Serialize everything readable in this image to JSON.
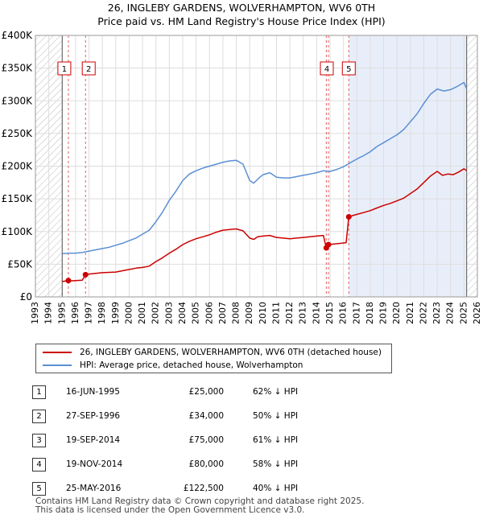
{
  "title_line1": "26, INGLEBY GARDENS, WOLVERHAMPTON, WV6 0TH",
  "title_line2": "Price paid vs. HM Land Registry's House Price Index (HPI)",
  "chart_data": {
    "type": "line",
    "title": "26, INGLEBY GARDENS, WOLVERHAMPTON, WV6 0TH — Price paid vs. HM Land Registry's House Price Index (HPI)",
    "xlim": [
      1993,
      2026
    ],
    "ylim": [
      0,
      400000
    ],
    "x_ticks": [
      "1993",
      "1994",
      "1995",
      "1996",
      "1997",
      "1998",
      "1999",
      "2000",
      "2001",
      "2002",
      "2003",
      "2004",
      "2005",
      "2006",
      "2007",
      "2008",
      "2009",
      "2010",
      "2011",
      "2012",
      "2013",
      "2014",
      "2015",
      "2016",
      "2017",
      "2018",
      "2019",
      "2020",
      "2021",
      "2022",
      "2023",
      "2024",
      "2025",
      "2026"
    ],
    "y_ticks": [
      {
        "value": 0,
        "label": "£0"
      },
      {
        "value": 50000,
        "label": "£50K"
      },
      {
        "value": 100000,
        "label": "£100K"
      },
      {
        "value": 150000,
        "label": "£150K"
      },
      {
        "value": 200000,
        "label": "£200K"
      },
      {
        "value": 250000,
        "label": "£250K"
      },
      {
        "value": 300000,
        "label": "£300K"
      },
      {
        "value": 350000,
        "label": "£350K"
      },
      {
        "value": 400000,
        "label": "£400K"
      }
    ],
    "data_range": [
      1995.0,
      2025.2
    ],
    "series": [
      {
        "name": "26, INGLEBY GARDENS, WOLVERHAMPTON, WV6 0TH (detached house)",
        "color": "#cc0000",
        "points": [
          [
            1995.0,
            23500
          ],
          [
            1995.46,
            25000
          ],
          [
            1995.6,
            24500
          ],
          [
            1996.0,
            25000
          ],
          [
            1996.5,
            25500
          ],
          [
            1996.74,
            34000
          ],
          [
            1997.0,
            35000
          ],
          [
            1997.5,
            36000
          ],
          [
            1998.0,
            37000
          ],
          [
            1998.5,
            37500
          ],
          [
            1999.0,
            38000
          ],
          [
            1999.5,
            40000
          ],
          [
            2000.0,
            42000
          ],
          [
            2000.5,
            44000
          ],
          [
            2001.0,
            45000
          ],
          [
            2001.5,
            47000
          ],
          [
            2002.0,
            54000
          ],
          [
            2002.5,
            60000
          ],
          [
            2003.0,
            67000
          ],
          [
            2003.5,
            73000
          ],
          [
            2004.0,
            80000
          ],
          [
            2004.5,
            85000
          ],
          [
            2005.0,
            89000
          ],
          [
            2005.5,
            92000
          ],
          [
            2006.0,
            95000
          ],
          [
            2006.5,
            99000
          ],
          [
            2007.0,
            102000
          ],
          [
            2007.5,
            103000
          ],
          [
            2008.0,
            104000
          ],
          [
            2008.5,
            101000
          ],
          [
            2009.0,
            90000
          ],
          [
            2009.3,
            88000
          ],
          [
            2009.6,
            92000
          ],
          [
            2010.0,
            93000
          ],
          [
            2010.5,
            94000
          ],
          [
            2011.0,
            91000
          ],
          [
            2011.5,
            90000
          ],
          [
            2012.0,
            89000
          ],
          [
            2012.5,
            90000
          ],
          [
            2013.0,
            91000
          ],
          [
            2013.5,
            92000
          ],
          [
            2014.0,
            93000
          ],
          [
            2014.5,
            94000
          ],
          [
            2014.72,
            75000
          ],
          [
            2014.88,
            80000
          ],
          [
            2015.3,
            81000
          ],
          [
            2015.8,
            82000
          ],
          [
            2016.2,
            83000
          ],
          [
            2016.4,
            122500
          ],
          [
            2016.8,
            125000
          ],
          [
            2017.5,
            129000
          ],
          [
            2018.0,
            132000
          ],
          [
            2018.5,
            136000
          ],
          [
            2019.0,
            140000
          ],
          [
            2019.5,
            143000
          ],
          [
            2020.0,
            147000
          ],
          [
            2020.5,
            151000
          ],
          [
            2021.0,
            158000
          ],
          [
            2021.5,
            165000
          ],
          [
            2022.0,
            175000
          ],
          [
            2022.5,
            185000
          ],
          [
            2023.0,
            192000
          ],
          [
            2023.4,
            186000
          ],
          [
            2023.8,
            188000
          ],
          [
            2024.2,
            187000
          ],
          [
            2024.6,
            191000
          ],
          [
            2025.0,
            196000
          ],
          [
            2025.2,
            193000
          ]
        ]
      },
      {
        "name": "HPI: Average price, detached house, Wolverhampton",
        "color": "#5b8fd4",
        "points": [
          [
            1995.0,
            66000
          ],
          [
            1995.5,
            67000
          ],
          [
            1996.0,
            67000
          ],
          [
            1996.5,
            68000
          ],
          [
            1997.0,
            70000
          ],
          [
            1997.5,
            72000
          ],
          [
            1998.0,
            74000
          ],
          [
            1998.5,
            76000
          ],
          [
            1999.0,
            79000
          ],
          [
            1999.5,
            82000
          ],
          [
            2000.0,
            86000
          ],
          [
            2000.5,
            90000
          ],
          [
            2001.0,
            96000
          ],
          [
            2001.5,
            102000
          ],
          [
            2002.0,
            115000
          ],
          [
            2002.5,
            130000
          ],
          [
            2003.0,
            148000
          ],
          [
            2003.5,
            162000
          ],
          [
            2004.0,
            178000
          ],
          [
            2004.5,
            188000
          ],
          [
            2005.0,
            193000
          ],
          [
            2005.5,
            197000
          ],
          [
            2006.0,
            200000
          ],
          [
            2006.5,
            203000
          ],
          [
            2007.0,
            206000
          ],
          [
            2007.5,
            208000
          ],
          [
            2008.0,
            209000
          ],
          [
            2008.5,
            203000
          ],
          [
            2009.0,
            178000
          ],
          [
            2009.3,
            174000
          ],
          [
            2009.7,
            182000
          ],
          [
            2010.0,
            187000
          ],
          [
            2010.5,
            190000
          ],
          [
            2011.0,
            183000
          ],
          [
            2011.5,
            182000
          ],
          [
            2012.0,
            182000
          ],
          [
            2012.5,
            184000
          ],
          [
            2013.0,
            186000
          ],
          [
            2013.5,
            188000
          ],
          [
            2014.0,
            190000
          ],
          [
            2014.5,
            193000
          ],
          [
            2015.0,
            192000
          ],
          [
            2015.5,
            195000
          ],
          [
            2016.0,
            199000
          ],
          [
            2016.5,
            205000
          ],
          [
            2017.0,
            211000
          ],
          [
            2017.5,
            216000
          ],
          [
            2018.0,
            222000
          ],
          [
            2018.5,
            230000
          ],
          [
            2019.0,
            236000
          ],
          [
            2019.5,
            242000
          ],
          [
            2020.0,
            248000
          ],
          [
            2020.5,
            256000
          ],
          [
            2021.0,
            268000
          ],
          [
            2021.5,
            280000
          ],
          [
            2022.0,
            296000
          ],
          [
            2022.5,
            310000
          ],
          [
            2023.0,
            318000
          ],
          [
            2023.5,
            315000
          ],
          [
            2024.0,
            317000
          ],
          [
            2024.5,
            322000
          ],
          [
            2025.0,
            328000
          ],
          [
            2025.2,
            318000
          ]
        ]
      }
    ],
    "sales": [
      {
        "num": "1",
        "x": 1995.46,
        "price": 25000
      },
      {
        "num": "2",
        "x": 1996.74,
        "price": 34000
      },
      {
        "num": "3",
        "x": 2014.72,
        "price": 75000
      },
      {
        "num": "4",
        "x": 2014.88,
        "price": 80000
      },
      {
        "num": "5",
        "x": 2016.4,
        "price": 122500
      }
    ],
    "hatch_ranges": [
      [
        1993,
        1995.0
      ],
      [
        2025.2,
        2026
      ]
    ],
    "shade_range": [
      2016.4,
      2025.2
    ],
    "vline_color": "#e06060",
    "marker_color": "#cc0000",
    "shade_color": "#e8eef9",
    "grid_color": "#dddddd",
    "hatch_color": "#bbbbbb"
  },
  "legend": {
    "red_label": "26, INGLEBY GARDENS, WOLVERHAMPTON, WV6 0TH (detached house)",
    "blue_label": "HPI: Average price, detached house, Wolverhampton"
  },
  "table": [
    {
      "num": "1",
      "date": "16-JUN-1995",
      "price": "£25,000",
      "hpi": "62% ↓ HPI"
    },
    {
      "num": "2",
      "date": "27-SEP-1996",
      "price": "£34,000",
      "hpi": "50% ↓ HPI"
    },
    {
      "num": "3",
      "date": "19-SEP-2014",
      "price": "£75,000",
      "hpi": "61% ↓ HPI"
    },
    {
      "num": "4",
      "date": "19-NOV-2014",
      "price": "£80,000",
      "hpi": "58% ↓ HPI"
    },
    {
      "num": "5",
      "date": "25-MAY-2016",
      "price": "£122,500",
      "hpi": "40% ↓ HPI"
    }
  ],
  "footer_line1": "Contains HM Land Registry data © Crown copyright and database right 2025.",
  "footer_line2": "This data is licensed under the Open Government Licence v3.0."
}
